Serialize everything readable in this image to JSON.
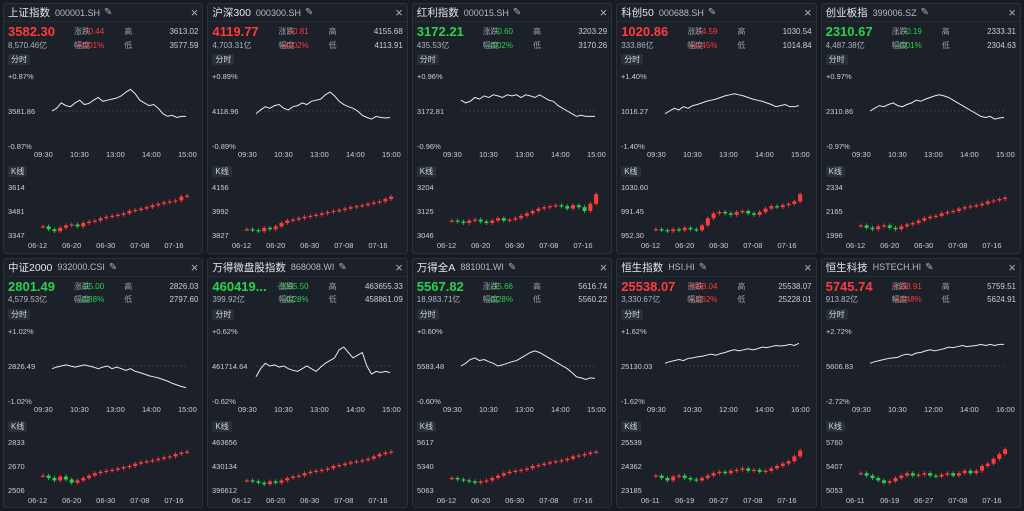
{
  "section_labels": {
    "intraday": "分时",
    "kline": "K线"
  },
  "panels": [
    {
      "name": "上证指数",
      "code": "000001.SH",
      "price": "3582.30",
      "dir": "up",
      "change": "+0.44",
      "pct": "+0.01%",
      "turnover": "8,570.46亿",
      "high": "3613.02",
      "low": "3577.59",
      "labels": {
        "change": "涨跌",
        "pct": "幅度",
        "high": "高",
        "low": "低"
      },
      "intraday": {
        "top": "+0.87%",
        "mid": "3581.86",
        "bottom": "-0.87%",
        "times": [
          "09:30",
          "10:30",
          "13:00",
          "14:00",
          "15:00"
        ],
        "line": [
          0.5,
          0.45,
          0.35,
          0.4,
          0.42,
          0.35,
          0.3,
          0.38,
          0.36,
          0.3,
          0.25,
          0.32,
          0.3,
          0.28,
          0.26,
          0.22,
          0.15,
          0.1,
          0.18,
          0.3,
          0.35,
          0.4,
          0.38,
          0.45,
          0.55,
          0.6,
          0.58,
          0.62,
          0.6,
          0.6
        ]
      },
      "kline": {
        "ticks": [
          "3614",
          "3481",
          "3347"
        ],
        "dates": [
          "06-12",
          "06-20",
          "06-30",
          "07-08",
          "07-16"
        ],
        "closes": [
          0.18,
          0.12,
          0.08,
          0.15,
          0.2,
          0.22,
          0.18,
          0.25,
          0.28,
          0.3,
          0.35,
          0.38,
          0.4,
          0.42,
          0.45,
          0.5,
          0.52,
          0.55,
          0.58,
          0.62,
          0.65,
          0.68,
          0.7,
          0.72,
          0.8,
          0.82
        ]
      }
    },
    {
      "name": "沪深300",
      "code": "000300.SH",
      "price": "4119.77",
      "dir": "up",
      "change": "+0.81",
      "pct": "+0.02%",
      "turnover": "4,703.31亿",
      "high": "4155.68",
      "low": "4113.91",
      "labels": {
        "change": "涨跌",
        "pct": "幅度",
        "high": "高",
        "low": "低"
      },
      "intraday": {
        "top": "+0.89%",
        "mid": "4118.96",
        "bottom": "-0.89%",
        "times": [
          "09:30",
          "10:30",
          "13:00",
          "14:00",
          "15:00"
        ],
        "line": [
          0.55,
          0.48,
          0.42,
          0.45,
          0.4,
          0.38,
          0.45,
          0.48,
          0.42,
          0.4,
          0.35,
          0.38,
          0.32,
          0.3,
          0.28,
          0.2,
          0.15,
          0.22,
          0.32,
          0.38,
          0.42,
          0.45,
          0.5,
          0.58,
          0.62,
          0.65,
          0.6,
          0.62,
          0.63,
          0.62
        ]
      },
      "kline": {
        "ticks": [
          "4156",
          "3992",
          "3827"
        ],
        "dates": [
          "06-12",
          "06-20",
          "06-30",
          "07-08",
          "07-16"
        ],
        "closes": [
          0.12,
          0.1,
          0.08,
          0.15,
          0.12,
          0.18,
          0.25,
          0.3,
          0.32,
          0.35,
          0.38,
          0.4,
          0.42,
          0.45,
          0.48,
          0.5,
          0.52,
          0.55,
          0.58,
          0.6,
          0.62,
          0.65,
          0.68,
          0.7,
          0.75,
          0.8
        ]
      }
    },
    {
      "name": "红利指数",
      "code": "000015.SH",
      "price": "3172.21",
      "dir": "down",
      "change": "-0.60",
      "pct": "-0.02%",
      "turnover": "435.53亿",
      "high": "3203.29",
      "low": "3170.26",
      "labels": {
        "change": "涨跌",
        "pct": "幅度",
        "high": "高",
        "low": "低"
      },
      "intraday": {
        "top": "+0.96%",
        "mid": "3172.81",
        "bottom": "-0.96%",
        "times": [
          "09:30",
          "10:30",
          "13:00",
          "14:00",
          "15:00"
        ],
        "line": [
          0.3,
          0.35,
          0.32,
          0.25,
          0.28,
          0.22,
          0.25,
          0.2,
          0.22,
          0.25,
          0.2,
          0.22,
          0.2,
          0.25,
          0.2,
          0.22,
          0.25,
          0.2,
          0.25,
          0.3,
          0.32,
          0.4,
          0.45,
          0.5,
          0.55,
          0.6,
          0.58,
          0.6,
          0.6,
          0.6
        ]
      },
      "kline": {
        "ticks": [
          "3204",
          "3125",
          "3046"
        ],
        "dates": [
          "06-12",
          "06-20",
          "06-30",
          "07-08",
          "07-16"
        ],
        "closes": [
          0.3,
          0.28,
          0.25,
          0.3,
          0.32,
          0.28,
          0.25,
          0.3,
          0.35,
          0.3,
          0.32,
          0.35,
          0.4,
          0.45,
          0.5,
          0.55,
          0.58,
          0.6,
          0.62,
          0.6,
          0.55,
          0.62,
          0.58,
          0.5,
          0.65,
          0.85
        ]
      }
    },
    {
      "name": "科创50",
      "code": "000688.SH",
      "price": "1020.86",
      "dir": "up",
      "change": "+4.59",
      "pct": "+0.45%",
      "turnover": "333.86亿",
      "high": "1030.54",
      "low": "1014.84",
      "labels": {
        "change": "涨跌",
        "pct": "幅度",
        "high": "高",
        "low": "低"
      },
      "intraday": {
        "top": "+1.40%",
        "mid": "1016.27",
        "bottom": "-1.40%",
        "times": [
          "09:30",
          "10:30",
          "13:00",
          "14:00",
          "15:00"
        ],
        "line": [
          0.55,
          0.5,
          0.45,
          0.48,
          0.42,
          0.45,
          0.4,
          0.38,
          0.35,
          0.32,
          0.3,
          0.28,
          0.25,
          0.22,
          0.2,
          0.18,
          0.2,
          0.22,
          0.25,
          0.28,
          0.3,
          0.32,
          0.35,
          0.38,
          0.42,
          0.4,
          0.38,
          0.42,
          0.42,
          0.4
        ]
      },
      "kline": {
        "ticks": [
          "1030.60",
          "991.45",
          "952.30"
        ],
        "dates": [
          "06-12",
          "06-20",
          "06-30",
          "07-08",
          "07-16"
        ],
        "closes": [
          0.12,
          0.1,
          0.08,
          0.12,
          0.1,
          0.15,
          0.12,
          0.1,
          0.2,
          0.35,
          0.45,
          0.48,
          0.45,
          0.42,
          0.48,
          0.5,
          0.45,
          0.42,
          0.48,
          0.55,
          0.6,
          0.58,
          0.62,
          0.65,
          0.7,
          0.85
        ]
      }
    },
    {
      "name": "创业板指",
      "code": "399006.SZ",
      "price": "2310.67",
      "dir": "down",
      "change": "-0.19",
      "pct": "-0.01%",
      "turnover": "4,487.38亿",
      "high": "2333.31",
      "low": "2304.63",
      "labels": {
        "change": "涨跌",
        "pct": "幅度",
        "high": "高",
        "low": "低"
      },
      "intraday": {
        "top": "+0.97%",
        "mid": "2310.86",
        "bottom": "-0.97%",
        "times": [
          "09:30",
          "10:30",
          "13:00",
          "14:00",
          "15:00"
        ],
        "line": [
          0.5,
          0.45,
          0.4,
          0.42,
          0.38,
          0.35,
          0.4,
          0.42,
          0.38,
          0.35,
          0.3,
          0.32,
          0.28,
          0.25,
          0.22,
          0.2,
          0.22,
          0.25,
          0.3,
          0.35,
          0.4,
          0.45,
          0.5,
          0.55,
          0.6,
          0.62,
          0.6,
          0.65,
          0.63,
          0.62
        ]
      },
      "kline": {
        "ticks": [
          "2334",
          "2165",
          "1996"
        ],
        "dates": [
          "06-12",
          "06-20",
          "06-30",
          "07-08",
          "07-16"
        ],
        "closes": [
          0.2,
          0.15,
          0.12,
          0.18,
          0.2,
          0.15,
          0.12,
          0.18,
          0.22,
          0.25,
          0.3,
          0.35,
          0.38,
          0.4,
          0.45,
          0.48,
          0.5,
          0.55,
          0.58,
          0.6,
          0.62,
          0.65,
          0.7,
          0.72,
          0.75,
          0.78
        ]
      }
    },
    {
      "name": "中证2000",
      "code": "932000.CSI",
      "price": "2801.49",
      "dir": "down",
      "change": "-25.00",
      "pct": "-0.88%",
      "turnover": "4,579.53亿",
      "high": "2826.03",
      "low": "2797.60",
      "labels": {
        "change": "涨跌",
        "pct": "幅度",
        "high": "高",
        "low": "低"
      },
      "intraday": {
        "top": "+1.02%",
        "mid": "2826.49",
        "bottom": "-1.02%",
        "times": [
          "09:30",
          "10:30",
          "13:00",
          "14:00",
          "15:00"
        ],
        "line": [
          0.55,
          0.52,
          0.5,
          0.48,
          0.5,
          0.52,
          0.5,
          0.48,
          0.5,
          0.52,
          0.55,
          0.52,
          0.5,
          0.55,
          0.52,
          0.55,
          0.58,
          0.55,
          0.6,
          0.62,
          0.65,
          0.68,
          0.7,
          0.72,
          0.75,
          0.78,
          0.82,
          0.85,
          0.88,
          0.9
        ]
      },
      "kline": {
        "ticks": [
          "2833",
          "2670",
          "2506"
        ],
        "dates": [
          "06-12",
          "06-20",
          "06-30",
          "07-08",
          "07-16"
        ],
        "closes": [
          0.3,
          0.25,
          0.2,
          0.28,
          0.22,
          0.15,
          0.2,
          0.25,
          0.3,
          0.35,
          0.38,
          0.4,
          0.42,
          0.45,
          0.48,
          0.5,
          0.55,
          0.58,
          0.6,
          0.62,
          0.65,
          0.68,
          0.7,
          0.75,
          0.78,
          0.8
        ]
      }
    },
    {
      "name": "万得微盘股指数",
      "code": "868008.WI",
      "price": "460419...",
      "dir": "down",
      "change": "-1295.50",
      "pct": "-0.28%",
      "turnover": "399.92亿",
      "high": "463655.33",
      "low": "458861.09",
      "labels": {
        "change": "涨跌",
        "pct": "幅度",
        "high": "高",
        "low": "低"
      },
      "intraday": {
        "top": "+0.62%",
        "mid": "461714.64",
        "bottom": "-0.62%",
        "times": [
          "09:30",
          "10:30",
          "13:00",
          "14:00",
          "15:00"
        ],
        "line": [
          0.7,
          0.55,
          0.45,
          0.5,
          0.48,
          0.52,
          0.5,
          0.55,
          0.58,
          0.6,
          0.55,
          0.5,
          0.55,
          0.6,
          0.52,
          0.45,
          0.4,
          0.35,
          0.2,
          0.15,
          0.25,
          0.35,
          0.3,
          0.25,
          0.5,
          0.65,
          0.6,
          0.62,
          0.6,
          0.62
        ]
      },
      "kline": {
        "ticks": [
          "463656",
          "430134",
          "396612"
        ],
        "dates": [
          "06-12",
          "06-20",
          "06-30",
          "07-08",
          "07-16"
        ],
        "closes": [
          0.2,
          0.18,
          0.15,
          0.12,
          0.18,
          0.15,
          0.2,
          0.25,
          0.28,
          0.3,
          0.35,
          0.38,
          0.4,
          0.42,
          0.45,
          0.5,
          0.52,
          0.55,
          0.58,
          0.6,
          0.62,
          0.65,
          0.7,
          0.75,
          0.78,
          0.8
        ]
      }
    },
    {
      "name": "万得全A",
      "code": "881001.WI",
      "price": "5567.82",
      "dir": "down",
      "change": "-15.66",
      "pct": "-0.28%",
      "turnover": "18,983.71亿",
      "high": "5616.74",
      "low": "5560.22",
      "labels": {
        "change": "涨跌",
        "pct": "幅度",
        "high": "高",
        "low": "低"
      },
      "intraday": {
        "top": "+0.60%",
        "mid": "5583.48",
        "bottom": "-0.60%",
        "times": [
          "09:30",
          "10:30",
          "13:00",
          "14:00",
          "15:00"
        ],
        "line": [
          0.5,
          0.45,
          0.38,
          0.35,
          0.4,
          0.38,
          0.42,
          0.45,
          0.5,
          0.48,
          0.45,
          0.42,
          0.4,
          0.35,
          0.3,
          0.25,
          0.22,
          0.25,
          0.3,
          0.35,
          0.4,
          0.45,
          0.5,
          0.55,
          0.62,
          0.7,
          0.72,
          0.75,
          0.72,
          0.73
        ]
      },
      "kline": {
        "ticks": [
          "5617",
          "5340",
          "5063"
        ],
        "dates": [
          "06-12",
          "06-20",
          "06-30",
          "07-08",
          "07-16"
        ],
        "closes": [
          0.25,
          0.22,
          0.2,
          0.18,
          0.15,
          0.18,
          0.2,
          0.25,
          0.3,
          0.35,
          0.38,
          0.4,
          0.42,
          0.45,
          0.5,
          0.52,
          0.55,
          0.58,
          0.6,
          0.62,
          0.65,
          0.7,
          0.72,
          0.75,
          0.78,
          0.8
        ]
      }
    },
    {
      "name": "恒生指数",
      "code": "HSI.HI",
      "price": "25538.07",
      "dir": "up",
      "change": "+408.04",
      "pct": "+1.62%",
      "turnover": "3,330.67亿",
      "high": "25538.07",
      "low": "25228.01",
      "labels": {
        "change": "涨跌",
        "pct": "幅度",
        "high": "高",
        "low": "低"
      },
      "intraday": {
        "top": "+1.62%",
        "mid": "25130.03",
        "bottom": "-1.62%",
        "times": [
          "09:30",
          "10:30",
          "12:00",
          "14:00",
          "16:00"
        ],
        "line": [
          0.45,
          0.42,
          0.4,
          0.38,
          0.4,
          0.36,
          0.35,
          0.33,
          0.32,
          0.3,
          0.28,
          0.3,
          0.27,
          0.25,
          0.22,
          0.2,
          0.22,
          0.2,
          0.18,
          0.2,
          0.18,
          0.15,
          0.16,
          0.14,
          0.12,
          0.13,
          0.12,
          0.1,
          0.12,
          0.08
        ]
      },
      "kline": {
        "ticks": [
          "25539",
          "24362",
          "23185"
        ],
        "dates": [
          "06-11",
          "06-19",
          "06-27",
          "07-08",
          "07-16"
        ],
        "closes": [
          0.3,
          0.25,
          0.2,
          0.28,
          0.3,
          0.25,
          0.22,
          0.2,
          0.25,
          0.3,
          0.35,
          0.38,
          0.35,
          0.4,
          0.42,
          0.45,
          0.4,
          0.42,
          0.38,
          0.4,
          0.45,
          0.5,
          0.55,
          0.6,
          0.7,
          0.82
        ]
      }
    },
    {
      "name": "恒生科技",
      "code": "HSTECH.HI",
      "price": "5745.74",
      "dir": "up",
      "change": "+138.91",
      "pct": "+2.48%",
      "turnover": "913.82亿",
      "high": "5759.51",
      "low": "5624.91",
      "labels": {
        "change": "涨跌",
        "pct": "幅度",
        "high": "高",
        "low": "低"
      },
      "intraday": {
        "top": "+2.72%",
        "mid": "5606.83",
        "bottom": "-2.72%",
        "times": [
          "09:30",
          "10:30",
          "12:00",
          "14:00",
          "16:00"
        ],
        "line": [
          0.45,
          0.42,
          0.4,
          0.38,
          0.36,
          0.35,
          0.34,
          0.3,
          0.28,
          0.3,
          0.26,
          0.25,
          0.22,
          0.2,
          0.22,
          0.2,
          0.18,
          0.15,
          0.16,
          0.14,
          0.12,
          0.14,
          0.13,
          0.12,
          0.1,
          0.12,
          0.1,
          0.12,
          0.1,
          0.1
        ]
      },
      "kline": {
        "ticks": [
          "5760",
          "5407",
          "5053"
        ],
        "dates": [
          "06-11",
          "06-19",
          "06-27",
          "07-08",
          "07-16"
        ],
        "closes": [
          0.35,
          0.3,
          0.25,
          0.2,
          0.15,
          0.18,
          0.25,
          0.3,
          0.35,
          0.3,
          0.32,
          0.35,
          0.3,
          0.28,
          0.32,
          0.35,
          0.3,
          0.35,
          0.4,
          0.35,
          0.4,
          0.5,
          0.55,
          0.65,
          0.75,
          0.85
        ]
      }
    }
  ]
}
